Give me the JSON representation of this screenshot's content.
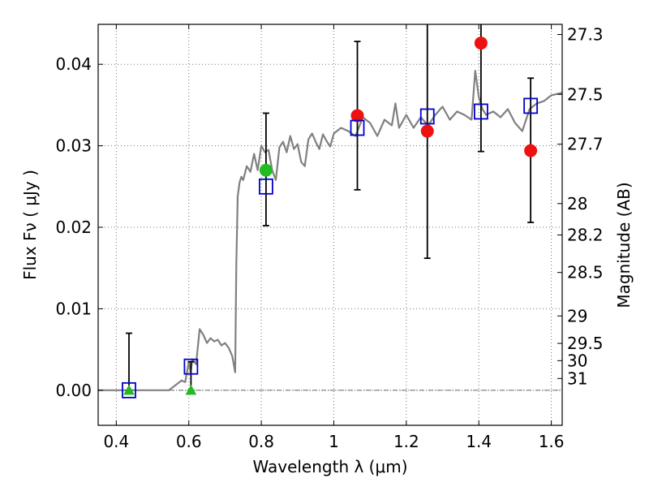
{
  "chart_data": {
    "type": "scatter",
    "title": "",
    "xlabel": "Wavelength  λ (μm)",
    "ylabel": "Flux  Fν  ( μJy )",
    "y2label": "Magnitude (AB)",
    "xlim": [
      0.35,
      1.63
    ],
    "ylim": [
      -0.0043,
      0.0449
    ],
    "grid": true,
    "x_ticks": [
      0.4,
      0.6,
      0.8,
      1.0,
      1.2,
      1.4,
      1.6
    ],
    "x_tick_labels": [
      "0.4",
      "0.6",
      "0.8",
      "1",
      "1.2",
      "1.4",
      "1.6"
    ],
    "y_ticks": [
      0.0,
      0.01,
      0.02,
      0.03,
      0.04
    ],
    "y_tick_labels": [
      "0.00",
      "0.01",
      "0.02",
      "0.03",
      "0.04"
    ],
    "y2_ticks": [
      {
        "label": "27.3",
        "mag": 27.3
      },
      {
        "label": "27.5",
        "mag": 27.5
      },
      {
        "label": "27.7",
        "mag": 27.7
      },
      {
        "label": "28",
        "mag": 28.0
      },
      {
        "label": "28.2",
        "mag": 28.2
      },
      {
        "label": "28.5",
        "mag": 28.5
      },
      {
        "label": "29",
        "mag": 29.0
      },
      {
        "label": "29.5",
        "mag": 29.5
      },
      {
        "label": "30",
        "mag": 30.0
      },
      {
        "label": "31",
        "mag": 31.0
      }
    ],
    "colors": {
      "model": "#808080",
      "observed": "#ee1111",
      "model_flux": "#0000cc",
      "green": "#22bb22",
      "errorbar": "#000000"
    },
    "model_spectrum": {
      "x": [
        0.35,
        0.4,
        0.45,
        0.5,
        0.545,
        0.56,
        0.58,
        0.59,
        0.6,
        0.605,
        0.61,
        0.62,
        0.63,
        0.64,
        0.65,
        0.66,
        0.67,
        0.68,
        0.69,
        0.7,
        0.71,
        0.72,
        0.728,
        0.731,
        0.735,
        0.74,
        0.745,
        0.75,
        0.76,
        0.77,
        0.78,
        0.79,
        0.8,
        0.81,
        0.82,
        0.83,
        0.84,
        0.85,
        0.86,
        0.87,
        0.88,
        0.89,
        0.9,
        0.91,
        0.92,
        0.93,
        0.94,
        0.95,
        0.96,
        0.97,
        0.98,
        0.99,
        1.0,
        1.02,
        1.04,
        1.06,
        1.08,
        1.1,
        1.12,
        1.14,
        1.16,
        1.17,
        1.18,
        1.2,
        1.22,
        1.24,
        1.26,
        1.28,
        1.3,
        1.32,
        1.34,
        1.36,
        1.38,
        1.39,
        1.4,
        1.41,
        1.42,
        1.44,
        1.46,
        1.48,
        1.5,
        1.52,
        1.54,
        1.56,
        1.58,
        1.6,
        1.63
      ],
      "y": [
        0.0,
        0.0,
        0.0,
        0.0,
        0.0,
        0.0005,
        0.0012,
        0.001,
        0.0035,
        0.0022,
        0.0038,
        0.0032,
        0.0075,
        0.0068,
        0.0058,
        0.0064,
        0.006,
        0.0062,
        0.0055,
        0.0058,
        0.0052,
        0.0042,
        0.0022,
        0.0155,
        0.0238,
        0.0255,
        0.0262,
        0.0258,
        0.0275,
        0.0268,
        0.029,
        0.027,
        0.03,
        0.0292,
        0.0295,
        0.027,
        0.0258,
        0.0298,
        0.0305,
        0.0292,
        0.0312,
        0.0296,
        0.0302,
        0.028,
        0.0275,
        0.0308,
        0.0315,
        0.0305,
        0.0296,
        0.0314,
        0.0306,
        0.0299,
        0.0315,
        0.0322,
        0.0318,
        0.0312,
        0.0335,
        0.0328,
        0.0312,
        0.0332,
        0.0325,
        0.0352,
        0.0322,
        0.0338,
        0.0322,
        0.0335,
        0.0325,
        0.0338,
        0.0348,
        0.0332,
        0.0342,
        0.0338,
        0.0332,
        0.0392,
        0.036,
        0.0345,
        0.0338,
        0.0342,
        0.0335,
        0.0345,
        0.0328,
        0.0318,
        0.0345,
        0.0352,
        0.0355,
        0.0362,
        0.0365
      ]
    },
    "series": [
      {
        "name": "observed",
        "marker": "circle",
        "x": [
          1.065,
          1.258,
          1.406,
          1.543
        ],
        "y": [
          0.0337,
          0.0318,
          0.0426,
          0.0294
        ]
      },
      {
        "name": "observed-detection",
        "marker": "circle-green",
        "x": [
          0.813
        ],
        "y": [
          0.027
        ]
      },
      {
        "name": "upper-limits",
        "marker": "triangle",
        "x": [
          0.435,
          0.606
        ],
        "y": [
          0.0,
          0.0
        ]
      },
      {
        "name": "model-flux",
        "marker": "square",
        "x": [
          0.435,
          0.606,
          0.813,
          1.065,
          1.258,
          1.406,
          1.543
        ],
        "y": [
          0.0,
          0.0029,
          0.025,
          0.0322,
          0.0336,
          0.0342,
          0.0349
        ]
      }
    ],
    "errorbars": [
      {
        "x": 0.435,
        "low": 0.0,
        "high": 0.007
      },
      {
        "x": 0.606,
        "low": 0.0,
        "high": 0.0035
      },
      {
        "x": 0.813,
        "low": 0.0202,
        "high": 0.034
      },
      {
        "x": 1.065,
        "low": 0.0246,
        "high": 0.0428
      },
      {
        "x": 1.258,
        "low": 0.0162,
        "high": 0.0449
      },
      {
        "x": 1.406,
        "low": 0.0293,
        "high": 0.0449
      },
      {
        "x": 1.543,
        "low": 0.0206,
        "high": 0.0383
      }
    ]
  }
}
